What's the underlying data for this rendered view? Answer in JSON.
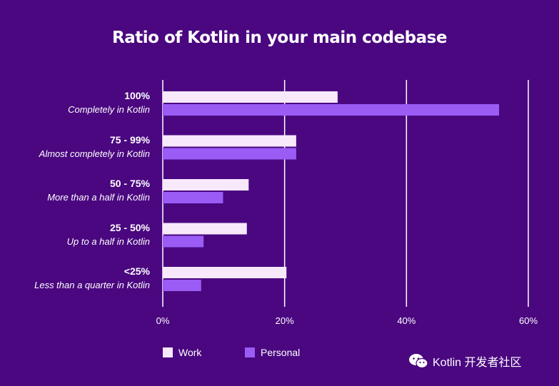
{
  "chart_data": {
    "type": "bar",
    "orientation": "horizontal",
    "title": "Ratio of Kotlin in your main codebase",
    "categories": [
      {
        "range": "100%",
        "description": "Completely in Kotlin"
      },
      {
        "range": "75 - 99%",
        "description": "Almost completely in Kotlin"
      },
      {
        "range": "50 - 75%",
        "description": "More than a half in Kotlin"
      },
      {
        "range": "25 - 50%",
        "description": "Up to a half in Kotlin"
      },
      {
        "range": "<25%",
        "description": "Less than a quarter in Kotlin"
      }
    ],
    "series": [
      {
        "name": "Work",
        "color": "#f7e8fb",
        "values": [
          28.7,
          21.9,
          14.1,
          13.8,
          20.3
        ]
      },
      {
        "name": "Personal",
        "color": "#9a5cf5",
        "values": [
          55.2,
          21.9,
          9.9,
          6.7,
          6.3
        ]
      }
    ],
    "xlim": [
      0,
      60
    ],
    "xticks": [
      0,
      20,
      40,
      60
    ],
    "xtick_labels": [
      "0%",
      "20%",
      "40%",
      "60%"
    ],
    "grid": true,
    "legend_position": "bottom-left"
  },
  "colors": {
    "background": "#4a0780",
    "gridline": "#ffffff"
  },
  "watermark": {
    "icon": "wechat-icon",
    "text": "Kotlin 开发者社区"
  }
}
